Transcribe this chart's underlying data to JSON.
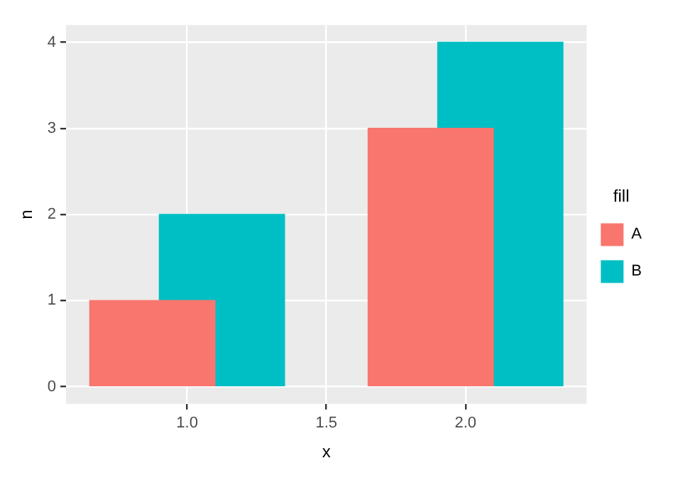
{
  "chart_data": {
    "type": "bar",
    "xlabel": "x",
    "ylabel": "n",
    "legend_title": "fill",
    "legend": "right",
    "xlim": [
      0.565,
      2.435
    ],
    "xticks": [
      {
        "value": 1,
        "label": "1.0"
      },
      {
        "value": 1.5,
        "label": "1.5"
      },
      {
        "value": 2,
        "label": "2.0"
      }
    ],
    "ylim": [
      -0.2,
      4.2
    ],
    "yticks": [
      0,
      1,
      2,
      3,
      4
    ],
    "grid": true,
    "series": [
      {
        "name": "A",
        "color": "#f8766d",
        "x": [
          0.875,
          1.875
        ],
        "values": [
          1,
          3
        ]
      },
      {
        "name": "B",
        "color": "#00bfc4",
        "x": [
          1.125,
          2.125
        ],
        "values": [
          2,
          4
        ]
      }
    ]
  }
}
